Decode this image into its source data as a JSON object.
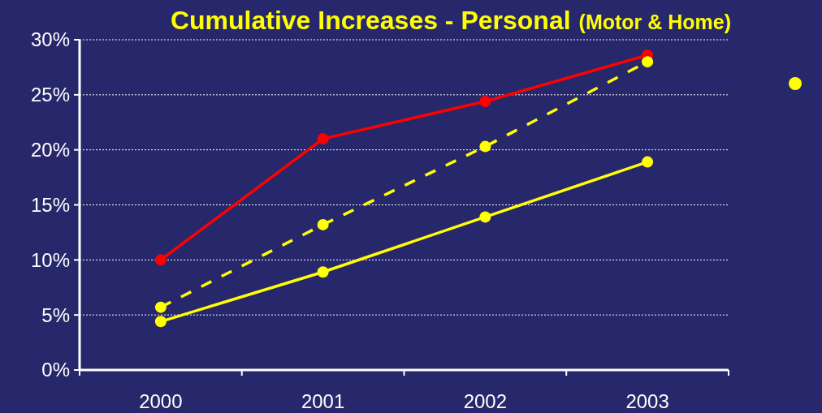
{
  "chart_data": {
    "type": "line",
    "title": "Cumulative Increases - Personal",
    "subtitle": "(Motor & Home)",
    "categories": [
      "2000",
      "2001",
      "2002",
      "2003"
    ],
    "series": [
      {
        "color": "#ff0000",
        "values": [
          10,
          21,
          24.4,
          28.6
        ],
        "line_style": "solid"
      },
      {
        "color": "#ffff00",
        "values": [
          5.7,
          13.2,
          20.3,
          28
        ],
        "line_style": "dashed"
      },
      {
        "color": "#ffff00",
        "values": [
          4.4,
          8.9,
          13.9,
          18.9
        ],
        "line_style": "solid"
      }
    ],
    "ylim": [
      0,
      30
    ],
    "yticks": [
      {
        "value": 0,
        "label": "0%"
      },
      {
        "value": 5,
        "label": "5%"
      },
      {
        "value": 10,
        "label": "10%"
      },
      {
        "value": 15,
        "label": "15%"
      },
      {
        "value": 20,
        "label": "20%"
      },
      {
        "value": 25,
        "label": "25%"
      },
      {
        "value": 30,
        "label": "30%"
      }
    ],
    "grid": "y",
    "marker": "circle"
  }
}
